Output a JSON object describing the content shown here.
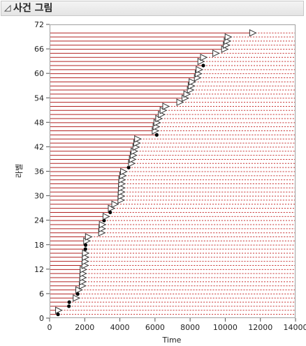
{
  "panel": {
    "title": "사건 그림"
  },
  "colors": {
    "line": "#b22222",
    "dotted": "#c83030",
    "marker": "#000000",
    "frame": "#a0a0a0"
  },
  "chart_data": {
    "type": "event-plot",
    "xlabel": "Time",
    "ylabel": "라벨",
    "xlim": [
      0,
      14000
    ],
    "ylim": [
      0,
      72
    ],
    "xticks": [
      0,
      2000,
      4000,
      6000,
      8000,
      10000,
      12000,
      14000
    ],
    "yticks": [
      0,
      6,
      12,
      18,
      24,
      30,
      36,
      42,
      48,
      54,
      60,
      66,
      72
    ],
    "grid": false,
    "rows": [
      {
        "y": 1,
        "x": 480,
        "event": "dot"
      },
      {
        "y": 2,
        "x": 500,
        "event": "censored"
      },
      {
        "y": 3,
        "x": 1100,
        "event": "dot"
      },
      {
        "y": 4,
        "x": 1120,
        "event": "dot"
      },
      {
        "y": 5,
        "x": 1500,
        "event": "censored"
      },
      {
        "y": 6,
        "x": 1600,
        "event": "dot"
      },
      {
        "y": 7,
        "x": 1650,
        "event": "censored"
      },
      {
        "y": 8,
        "x": 1850,
        "event": "censored"
      },
      {
        "y": 9,
        "x": 1870,
        "event": "censored"
      },
      {
        "y": 10,
        "x": 1880,
        "event": "censored"
      },
      {
        "y": 11,
        "x": 1890,
        "event": "censored"
      },
      {
        "y": 12,
        "x": 1900,
        "event": "censored"
      },
      {
        "y": 13,
        "x": 2000,
        "event": "censored"
      },
      {
        "y": 14,
        "x": 2010,
        "event": "censored"
      },
      {
        "y": 15,
        "x": 2020,
        "event": "censored"
      },
      {
        "y": 16,
        "x": 2030,
        "event": "censored"
      },
      {
        "y": 17,
        "x": 2040,
        "event": "dot"
      },
      {
        "y": 18,
        "x": 2050,
        "event": "dot"
      },
      {
        "y": 19,
        "x": 2100,
        "event": "censored"
      },
      {
        "y": 20,
        "x": 2200,
        "event": "censored"
      },
      {
        "y": 21,
        "x": 2950,
        "event": "censored"
      },
      {
        "y": 22,
        "x": 2970,
        "event": "censored"
      },
      {
        "y": 23,
        "x": 2990,
        "event": "censored"
      },
      {
        "y": 24,
        "x": 3100,
        "event": "dot"
      },
      {
        "y": 25,
        "x": 3200,
        "event": "censored"
      },
      {
        "y": 26,
        "x": 3450,
        "event": "dot"
      },
      {
        "y": 27,
        "x": 3500,
        "event": "censored"
      },
      {
        "y": 28,
        "x": 3700,
        "event": "censored"
      },
      {
        "y": 29,
        "x": 4050,
        "event": "censored"
      },
      {
        "y": 30,
        "x": 4060,
        "event": "censored"
      },
      {
        "y": 31,
        "x": 4070,
        "event": "censored"
      },
      {
        "y": 32,
        "x": 4080,
        "event": "censored"
      },
      {
        "y": 33,
        "x": 4090,
        "event": "censored"
      },
      {
        "y": 34,
        "x": 4100,
        "event": "censored"
      },
      {
        "y": 35,
        "x": 4150,
        "event": "censored"
      },
      {
        "y": 36,
        "x": 4200,
        "event": "censored"
      },
      {
        "y": 37,
        "x": 4500,
        "event": "dot"
      },
      {
        "y": 38,
        "x": 4650,
        "event": "censored"
      },
      {
        "y": 39,
        "x": 4700,
        "event": "censored"
      },
      {
        "y": 40,
        "x": 4750,
        "event": "censored"
      },
      {
        "y": 41,
        "x": 4800,
        "event": "censored"
      },
      {
        "y": 42,
        "x": 4900,
        "event": "censored"
      },
      {
        "y": 43,
        "x": 4950,
        "event": "censored"
      },
      {
        "y": 44,
        "x": 5000,
        "event": "censored"
      },
      {
        "y": 45,
        "x": 6100,
        "event": "dot"
      },
      {
        "y": 46,
        "x": 6000,
        "event": "censored"
      },
      {
        "y": 47,
        "x": 6050,
        "event": "censored"
      },
      {
        "y": 48,
        "x": 6100,
        "event": "censored"
      },
      {
        "y": 49,
        "x": 6200,
        "event": "censored"
      },
      {
        "y": 50,
        "x": 6350,
        "event": "censored"
      },
      {
        "y": 51,
        "x": 6450,
        "event": "censored"
      },
      {
        "y": 52,
        "x": 6600,
        "event": "censored"
      },
      {
        "y": 53,
        "x": 7400,
        "event": "censored"
      },
      {
        "y": 54,
        "x": 7700,
        "event": "censored"
      },
      {
        "y": 55,
        "x": 7800,
        "event": "censored"
      },
      {
        "y": 56,
        "x": 8000,
        "event": "censored"
      },
      {
        "y": 57,
        "x": 8050,
        "event": "censored"
      },
      {
        "y": 58,
        "x": 8100,
        "event": "censored"
      },
      {
        "y": 59,
        "x": 8400,
        "event": "censored"
      },
      {
        "y": 60,
        "x": 8450,
        "event": "censored"
      },
      {
        "y": 61,
        "x": 8500,
        "event": "censored"
      },
      {
        "y": 62,
        "x": 8750,
        "event": "dot"
      },
      {
        "y": 63,
        "x": 8600,
        "event": "censored"
      },
      {
        "y": 64,
        "x": 8750,
        "event": "censored"
      },
      {
        "y": 65,
        "x": 9450,
        "event": "censored"
      },
      {
        "y": 66,
        "x": 9950,
        "event": "censored"
      },
      {
        "y": 67,
        "x": 10050,
        "event": "censored"
      },
      {
        "y": 68,
        "x": 10100,
        "event": "censored"
      },
      {
        "y": 69,
        "x": 10150,
        "event": "censored"
      },
      {
        "y": 70,
        "x": 11550,
        "event": "censored"
      }
    ]
  }
}
